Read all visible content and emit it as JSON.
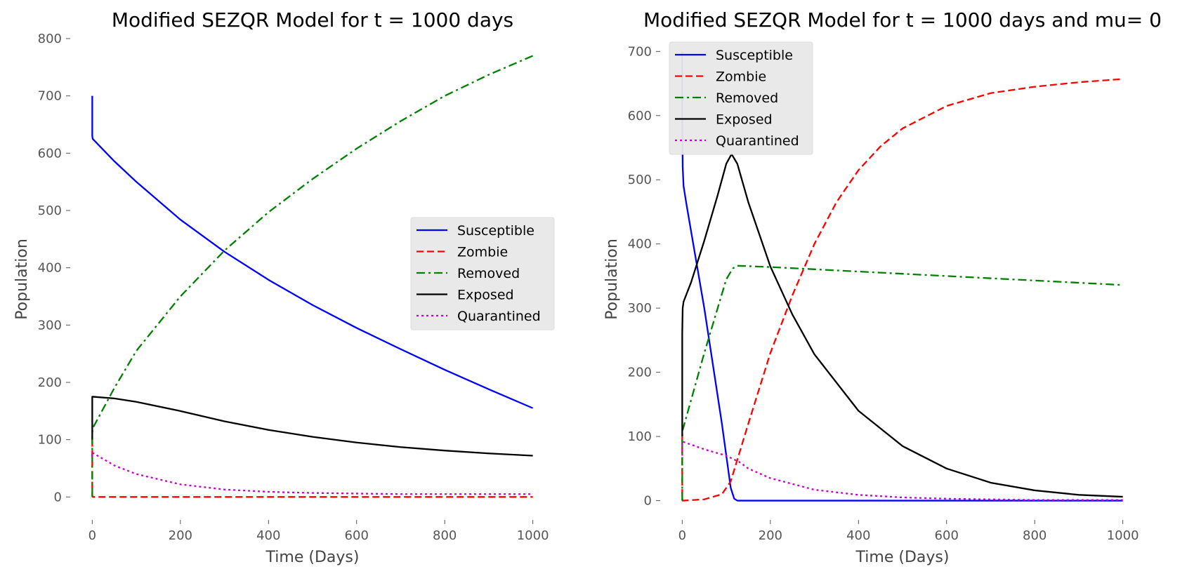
{
  "chart_data": [
    {
      "type": "line",
      "title": "Modified SEZQR Model for t = 1000 days",
      "xlabel": "Time (Days)",
      "ylabel": "Population",
      "xlim": [
        -50,
        1050
      ],
      "ylim": [
        -40,
        800
      ],
      "xticks": [
        0,
        200,
        400,
        600,
        800,
        1000
      ],
      "yticks": [
        0,
        100,
        200,
        300,
        400,
        500,
        600,
        700,
        800
      ],
      "grid": false,
      "legend_position": "center-right",
      "series": [
        {
          "name": "Susceptible",
          "color": "#0000ff",
          "dash": "solid",
          "x": [
            0,
            0,
            1,
            50,
            100,
            200,
            300,
            400,
            500,
            600,
            700,
            800,
            900,
            1000
          ],
          "y": [
            700,
            630,
            625,
            586,
            550,
            484,
            428,
            379,
            335,
            295,
            258,
            222,
            188,
            155
          ]
        },
        {
          "name": "Zombie",
          "color": "#ff0000",
          "dash": "dashed",
          "x": [
            0,
            0,
            1,
            1000
          ],
          "y": [
            100,
            3,
            0,
            0
          ]
        },
        {
          "name": "Removed",
          "color": "#008000",
          "dash": "dashdot",
          "x": [
            0,
            0,
            1,
            50,
            100,
            200,
            300,
            400,
            500,
            600,
            700,
            800,
            900,
            1000
          ],
          "y": [
            0,
            110,
            120,
            190,
            255,
            350,
            430,
            497,
            555,
            608,
            656,
            700,
            737,
            770
          ]
        },
        {
          "name": "Exposed",
          "color": "#000000",
          "dash": "solid",
          "x": [
            0,
            0,
            1,
            50,
            100,
            200,
            300,
            400,
            500,
            600,
            700,
            800,
            900,
            1000
          ],
          "y": [
            100,
            175,
            175,
            172,
            166,
            150,
            132,
            117,
            105,
            95,
            87,
            81,
            76,
            72
          ]
        },
        {
          "name": "Quarantined",
          "color": "#cc00cc",
          "dash": "dotted",
          "x": [
            0,
            0,
            1,
            50,
            100,
            200,
            300,
            400,
            500,
            600,
            700,
            800,
            900,
            1000
          ],
          "y": [
            70,
            78,
            77,
            55,
            40,
            22,
            13,
            9,
            7,
            6,
            5,
            5,
            5,
            5
          ]
        }
      ]
    },
    {
      "type": "line",
      "title": "Modified SEZQR Model for t = 1000 days and mu= 0",
      "xlabel": "Time (Days)",
      "ylabel": "Population",
      "xlim": [
        -50,
        1050
      ],
      "ylim": [
        -30,
        720
      ],
      "xticks": [
        0,
        200,
        400,
        600,
        800,
        1000
      ],
      "yticks": [
        0,
        100,
        200,
        300,
        400,
        500,
        600,
        700
      ],
      "grid": false,
      "legend_position": "top-left",
      "series": [
        {
          "name": "Susceptible",
          "color": "#0000ff",
          "dash": "solid",
          "x": [
            0,
            0,
            1,
            3,
            10,
            50,
            90,
            110,
            118,
            125,
            1000
          ],
          "y": [
            700,
            600,
            520,
            490,
            460,
            300,
            120,
            20,
            3,
            0,
            0
          ]
        },
        {
          "name": "Zombie",
          "color": "#ff0000",
          "dash": "dashed",
          "x": [
            0,
            0,
            1,
            50,
            90,
            110,
            130,
            150,
            200,
            250,
            300,
            350,
            400,
            450,
            500,
            600,
            700,
            800,
            900,
            1000
          ],
          "y": [
            100,
            3,
            0,
            2,
            10,
            30,
            75,
            120,
            230,
            320,
            400,
            465,
            515,
            552,
            580,
            615,
            635,
            645,
            652,
            657
          ]
        },
        {
          "name": "Removed",
          "color": "#008000",
          "dash": "dashdot",
          "x": [
            0,
            0,
            1,
            50,
            100,
            115,
            125,
            200,
            400,
            600,
            800,
            1000
          ],
          "y": [
            0,
            100,
            110,
            230,
            345,
            362,
            366,
            364,
            357,
            350,
            343,
            336
          ]
        },
        {
          "name": "Exposed",
          "color": "#000000",
          "dash": "solid",
          "x": [
            0,
            0,
            1,
            3,
            20,
            50,
            80,
            100,
            112,
            125,
            150,
            200,
            250,
            300,
            400,
            500,
            600,
            700,
            800,
            900,
            1000
          ],
          "y": [
            100,
            260,
            300,
            310,
            340,
            405,
            475,
            525,
            540,
            525,
            465,
            365,
            290,
            228,
            140,
            85,
            50,
            28,
            16,
            9,
            6
          ]
        },
        {
          "name": "Quarantined",
          "color": "#cc00cc",
          "dash": "dotted",
          "x": [
            0,
            0,
            1,
            50,
            100,
            130,
            150,
            200,
            300,
            400,
            500,
            600,
            800,
            1000
          ],
          "y": [
            70,
            90,
            92,
            80,
            70,
            60,
            50,
            35,
            17,
            9,
            5,
            3,
            1,
            1
          ]
        }
      ]
    }
  ]
}
